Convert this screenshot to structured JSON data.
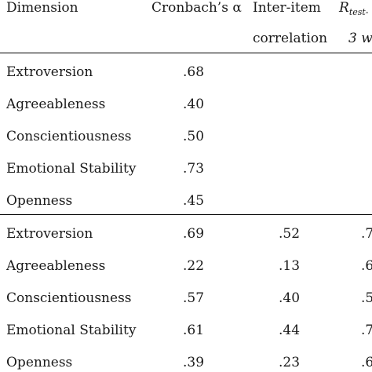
{
  "header": {
    "dimension": "Dimension",
    "cronbach": "Cronbach’s α",
    "interitem_line1": "Inter-item",
    "interitem_line2": "correlation",
    "retest_symbol": "R",
    "retest_sub": "test-",
    "retest_line2": "3 w"
  },
  "section1": {
    "rows": [
      {
        "dimension": "Extroversion",
        "alpha": ".68"
      },
      {
        "dimension": "Agreeableness",
        "alpha": ".40"
      },
      {
        "dimension": "Conscientiousness",
        "alpha": ".50"
      },
      {
        "dimension": "Emotional Stability",
        "alpha": ".73"
      },
      {
        "dimension": "Openness",
        "alpha": ".45"
      }
    ]
  },
  "section2": {
    "rows": [
      {
        "dimension": "Extroversion",
        "alpha": ".69",
        "interitem": ".52",
        "retest": ".7"
      },
      {
        "dimension": "Agreeableness",
        "alpha": ".22",
        "interitem": ".13",
        "retest": ".6"
      },
      {
        "dimension": "Conscientiousness",
        "alpha": ".57",
        "interitem": ".40",
        "retest": ".5"
      },
      {
        "dimension": "Emotional Stability",
        "alpha": ".61",
        "interitem": ".44",
        "retest": ".7"
      },
      {
        "dimension": "Openness",
        "alpha": ".39",
        "interitem": ".23",
        "retest": ".6"
      }
    ]
  }
}
